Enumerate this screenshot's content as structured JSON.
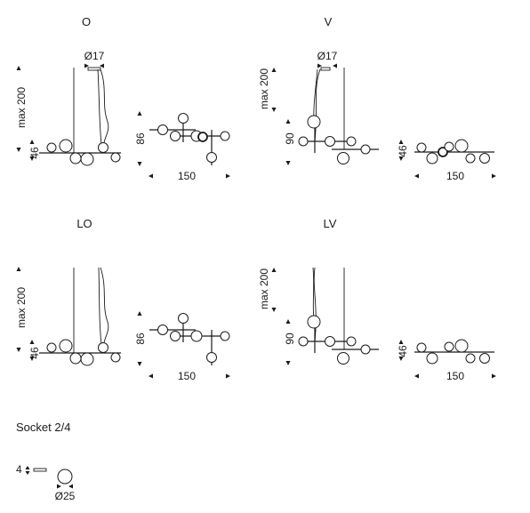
{
  "sections": {
    "o": {
      "title": "O",
      "height_dim": "max 200",
      "canopy_dim": "Ø17",
      "bar_dim": "46",
      "plan_depth": "86",
      "plan_width": "150"
    },
    "v": {
      "title": "V",
      "height_dim": "max 200",
      "canopy_dim": "Ø17",
      "drop_dim": "90",
      "bar_dim": "46",
      "plan_width": "150"
    },
    "lo": {
      "title": "LO",
      "height_dim": "max 200",
      "bar_dim": "46",
      "plan_depth": "86",
      "plan_width": "150"
    },
    "lv": {
      "title": "LV",
      "height_dim": "max 200",
      "drop_dim": "90",
      "bar_dim": "46",
      "plan_width": "150"
    }
  },
  "socket": {
    "title": "Socket 2/4",
    "height_dim": "4",
    "diameter_dim": "Ø25"
  }
}
